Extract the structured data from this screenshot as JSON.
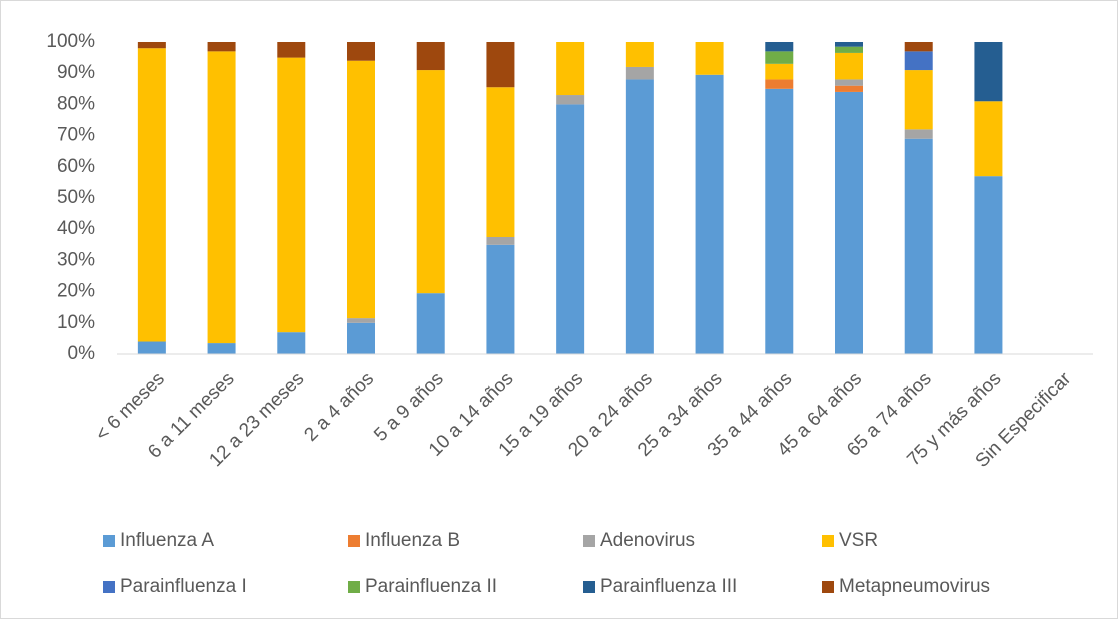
{
  "chart_data": {
    "type": "stacked_bar",
    "categories": [
      "< 6 meses",
      "6 a 11 meses",
      "12 a 23 meses",
      "2 a 4 años",
      "5 a 9 años",
      "10 a 14 años",
      "15 a 19 años",
      "20 a 24 años",
      "25 a 34 años",
      "35 a 44 años",
      "45 a 64 años",
      "65 a 74 años",
      "75 y más años",
      "Sin Especificar"
    ],
    "series": [
      {
        "name": "Influenza A",
        "color": "#5b9bd5",
        "values": [
          4,
          3.5,
          7,
          10,
          19.5,
          35,
          80,
          88,
          89.5,
          85,
          84,
          69,
          57,
          0
        ]
      },
      {
        "name": "Influenza B",
        "color": "#ed7d31",
        "values": [
          0,
          0,
          0,
          0,
          0,
          0,
          0,
          0,
          0,
          3,
          2,
          0,
          0,
          0
        ]
      },
      {
        "name": "Adenovirus",
        "color": "#a5a5a5",
        "values": [
          0,
          0,
          0,
          1.5,
          0,
          2.5,
          3,
          4,
          0,
          0,
          2,
          3,
          0,
          0
        ]
      },
      {
        "name": "VSR",
        "color": "#ffc000",
        "values": [
          94,
          93.5,
          88,
          82.5,
          71.5,
          48,
          17,
          8,
          10.5,
          5,
          8.5,
          19,
          24,
          0
        ]
      },
      {
        "name": "Parainfluenza I",
        "color": "#4472c4",
        "values": [
          0,
          0,
          0,
          0,
          0,
          0,
          0,
          0,
          0,
          0,
          0,
          6,
          0,
          0
        ]
      },
      {
        "name": "Parainfluenza II",
        "color": "#70ad47",
        "values": [
          0,
          0,
          0,
          0,
          0,
          0,
          0,
          0,
          0,
          4,
          2,
          0,
          0,
          0
        ]
      },
      {
        "name": "Parainfluenza III",
        "color": "#255e91",
        "values": [
          0,
          0,
          0,
          0,
          0,
          0,
          0,
          0,
          0,
          3,
          1.5,
          0,
          19,
          0
        ]
      },
      {
        "name": "Metapneumovirus",
        "color": "#9e480e",
        "values": [
          2,
          3,
          5,
          6,
          9,
          14.5,
          0,
          0,
          0,
          0,
          0,
          3,
          0,
          0
        ]
      }
    ],
    "ylim": [
      0,
      100
    ],
    "yticks": [
      {
        "value": 0,
        "label": "0%"
      },
      {
        "value": 10,
        "label": "10%"
      },
      {
        "value": 20,
        "label": "20%"
      },
      {
        "value": 30,
        "label": "30%"
      },
      {
        "value": 40,
        "label": "40%"
      },
      {
        "value": 50,
        "label": "50%"
      },
      {
        "value": 60,
        "label": "60%"
      },
      {
        "value": 70,
        "label": "70%"
      },
      {
        "value": 80,
        "label": "80%"
      },
      {
        "value": 90,
        "label": "90%"
      },
      {
        "value": 100,
        "label": "100%"
      }
    ],
    "grid": false,
    "legend": "bottom"
  }
}
